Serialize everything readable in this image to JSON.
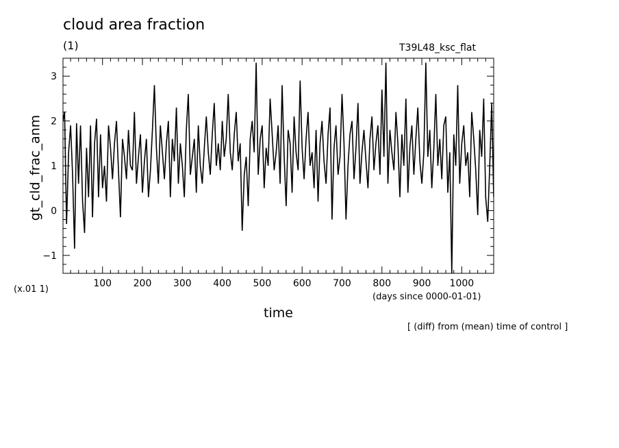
{
  "figure": {
    "title": "cloud area fraction",
    "units": "(1)",
    "experiment": "T39L48_ksc_flat",
    "scale_factor": "(x.01 1)",
    "x_units": "(days since 0000-01-01)",
    "note": "[ (diff) from (mean) time of control ]",
    "line_color": "#000000"
  },
  "chart_data": {
    "type": "line",
    "xlabel": "time",
    "ylabel": "gt_cld_frac_anm",
    "xlim": [
      1,
      1080
    ],
    "ylim": [
      -1.4,
      3.4
    ],
    "x_ticks": [
      100,
      200,
      300,
      400,
      500,
      600,
      700,
      800,
      900,
      1000
    ],
    "y_ticks": [
      -1,
      0,
      1,
      2,
      3
    ],
    "grid": false,
    "series": [
      {
        "x": [
          1,
          5,
          10,
          15,
          20,
          25,
          30,
          35,
          40,
          45,
          50,
          55,
          60,
          65,
          70,
          75,
          80,
          85,
          90,
          95,
          100,
          105,
          110,
          115,
          120,
          125,
          130,
          135,
          140,
          145,
          150,
          155,
          160,
          165,
          170,
          175,
          180,
          185,
          190,
          195,
          200,
          205,
          210,
          215,
          220,
          225,
          230,
          235,
          240,
          245,
          250,
          255,
          260,
          265,
          270,
          275,
          280,
          285,
          290,
          295,
          300,
          305,
          310,
          315,
          320,
          325,
          330,
          335,
          340,
          345,
          350,
          355,
          360,
          365,
          370,
          375,
          380,
          385,
          390,
          395,
          400,
          405,
          410,
          415,
          420,
          425,
          430,
          435,
          440,
          445,
          450,
          455,
          460,
          465,
          470,
          475,
          480,
          485,
          490,
          495,
          500,
          505,
          510,
          515,
          520,
          525,
          530,
          535,
          540,
          545,
          550,
          555,
          560,
          565,
          570,
          575,
          580,
          585,
          590,
          595,
          600,
          605,
          610,
          615,
          620,
          625,
          630,
          635,
          640,
          645,
          650,
          655,
          660,
          665,
          670,
          675,
          680,
          685,
          690,
          695,
          700,
          705,
          710,
          715,
          720,
          725,
          730,
          735,
          740,
          745,
          750,
          755,
          760,
          765,
          770,
          775,
          780,
          785,
          790,
          795,
          800,
          805,
          810,
          815,
          820,
          825,
          830,
          835,
          840,
          845,
          850,
          855,
          860,
          865,
          870,
          875,
          880,
          885,
          890,
          895,
          900,
          905,
          910,
          915,
          920,
          925,
          930,
          935,
          940,
          945,
          950,
          955,
          960,
          965,
          970,
          975,
          980,
          985,
          990,
          995,
          1000,
          1005,
          1010,
          1015,
          1020,
          1025,
          1030,
          1035,
          1040,
          1045,
          1050,
          1055,
          1060,
          1065,
          1070,
          1075,
          1080
        ],
        "y": [
          2.0,
          2.2,
          -0.3,
          1.3,
          1.9,
          0.8,
          -0.85,
          1.95,
          0.6,
          1.9,
          0.2,
          -0.5,
          1.4,
          0.3,
          1.9,
          -0.15,
          1.5,
          2.05,
          0.3,
          1.7,
          0.5,
          1.0,
          0.2,
          1.9,
          1.4,
          0.7,
          1.5,
          2.0,
          0.9,
          -0.15,
          1.6,
          1.2,
          0.7,
          1.8,
          1.0,
          0.9,
          2.2,
          0.6,
          1.2,
          1.7,
          0.4,
          1.1,
          1.6,
          0.3,
          0.9,
          1.8,
          2.8,
          1.4,
          0.6,
          1.9,
          1.3,
          0.7,
          1.5,
          2.0,
          0.3,
          1.6,
          1.1,
          2.3,
          0.6,
          1.5,
          1.0,
          0.3,
          1.8,
          2.6,
          0.8,
          1.2,
          1.6,
          0.4,
          1.9,
          1.0,
          0.6,
          1.4,
          2.1,
          1.3,
          0.8,
          1.7,
          2.4,
          1.0,
          1.5,
          0.9,
          2.0,
          1.2,
          1.6,
          2.6,
          1.3,
          0.9,
          1.7,
          2.2,
          1.1,
          1.5,
          -0.45,
          0.8,
          1.2,
          0.1,
          1.6,
          2.0,
          1.3,
          3.3,
          0.8,
          1.6,
          1.9,
          0.5,
          1.4,
          1.0,
          2.5,
          1.7,
          0.9,
          1.3,
          1.9,
          0.6,
          2.8,
          1.2,
          0.1,
          1.8,
          1.5,
          0.4,
          2.1,
          1.3,
          0.9,
          2.9,
          1.4,
          0.7,
          1.6,
          2.2,
          1.0,
          1.3,
          0.5,
          1.8,
          0.2,
          1.5,
          2.0,
          1.1,
          0.6,
          1.7,
          2.3,
          -0.2,
          1.4,
          1.9,
          0.8,
          1.2,
          2.6,
          1.5,
          -0.2,
          1.0,
          1.7,
          2.0,
          0.7,
          1.4,
          2.4,
          0.6,
          1.3,
          1.8,
          1.1,
          0.5,
          1.6,
          2.1,
          0.9,
          1.5,
          1.9,
          0.8,
          2.7,
          1.2,
          3.3,
          0.6,
          1.8,
          1.3,
          0.9,
          2.2,
          1.5,
          0.3,
          1.7,
          1.0,
          2.5,
          0.4,
          1.4,
          1.9,
          0.8,
          1.6,
          2.3,
          1.1,
          0.6,
          1.3,
          3.3,
          1.2,
          1.8,
          0.5,
          1.4,
          2.6,
          1.0,
          1.6,
          0.7,
          1.9,
          2.1,
          0.4,
          1.3,
          -1.4,
          1.7,
          1.0,
          2.8,
          0.6,
          1.5,
          1.9,
          1.0,
          1.3,
          0.3,
          2.2,
          1.6,
          0.9,
          -0.1,
          1.8,
          1.2,
          2.5,
          0.3,
          -0.25,
          1.0,
          2.4,
          0.3
        ]
      }
    ]
  }
}
